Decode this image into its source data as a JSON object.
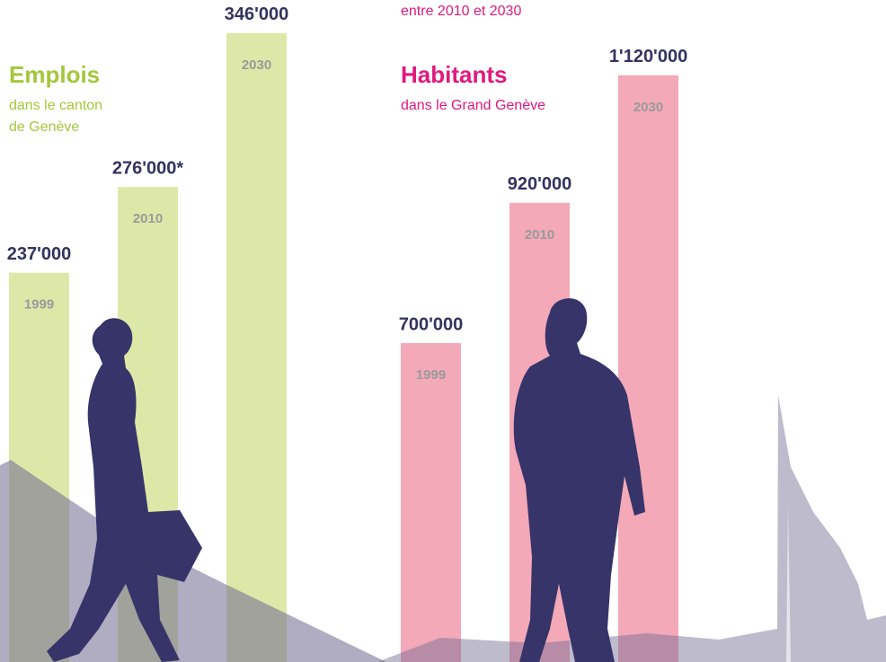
{
  "chart_data": [
    {
      "type": "bar",
      "title": "Emplois",
      "subtitle": [
        "dans le canton",
        "de Genève"
      ],
      "categories": [
        "1999",
        "2010",
        "2030"
      ],
      "values": [
        237000,
        276000,
        346000
      ],
      "value_labels": [
        "237'000",
        "276'000*",
        "346'000"
      ],
      "color": "#dde8a8",
      "title_color": "#a5c63b",
      "ylim": [
        60000,
        350000
      ]
    },
    {
      "type": "bar",
      "title": "Habitants",
      "subtitle": [
        "dans le Grand Genève"
      ],
      "note": "entre 2010 et 2030",
      "categories": [
        "1999",
        "2010",
        "2030"
      ],
      "values": [
        700000,
        920000,
        1120000
      ],
      "value_labels": [
        "700'000",
        "920'000",
        "1'120'000"
      ],
      "color": "#f4a9b8",
      "title_color": "#e0197d",
      "ylim": [
        200000,
        1200000
      ]
    }
  ]
}
